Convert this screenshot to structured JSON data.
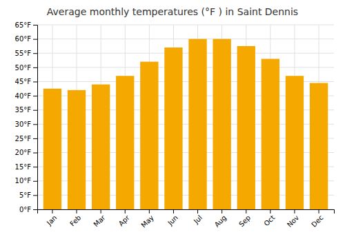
{
  "chart_data": {
    "type": "bar",
    "title": "Average monthly temperatures (°F ) in Saint Dennis",
    "categories": [
      "Jan",
      "Feb",
      "Mar",
      "Apr",
      "May",
      "Jun",
      "Jul",
      "Aug",
      "Sep",
      "Oct",
      "Nov",
      "Dec"
    ],
    "values": [
      42.5,
      42.0,
      44.0,
      47.0,
      52.0,
      57.0,
      60.0,
      60.0,
      57.5,
      53.0,
      47.0,
      44.5
    ],
    "color": "#F5A800",
    "ylim": [
      0,
      65
    ],
    "yticks": [
      {
        "value": 0,
        "label": "0°F"
      },
      {
        "value": 5,
        "label": "5°F"
      },
      {
        "value": 10,
        "label": "10°F"
      },
      {
        "value": 15,
        "label": "15°F"
      },
      {
        "value": 20,
        "label": "20°F"
      },
      {
        "value": 25,
        "label": "25°F"
      },
      {
        "value": 30,
        "label": "30°F"
      },
      {
        "value": 35,
        "label": "35°F"
      },
      {
        "value": 40,
        "label": "40°F"
      },
      {
        "value": 45,
        "label": "45°F"
      },
      {
        "value": 50,
        "label": "50°F"
      },
      {
        "value": 55,
        "label": "55°F"
      },
      {
        "value": 60,
        "label": "60°F"
      },
      {
        "value": 65,
        "label": "65°F"
      }
    ],
    "grid": true
  }
}
